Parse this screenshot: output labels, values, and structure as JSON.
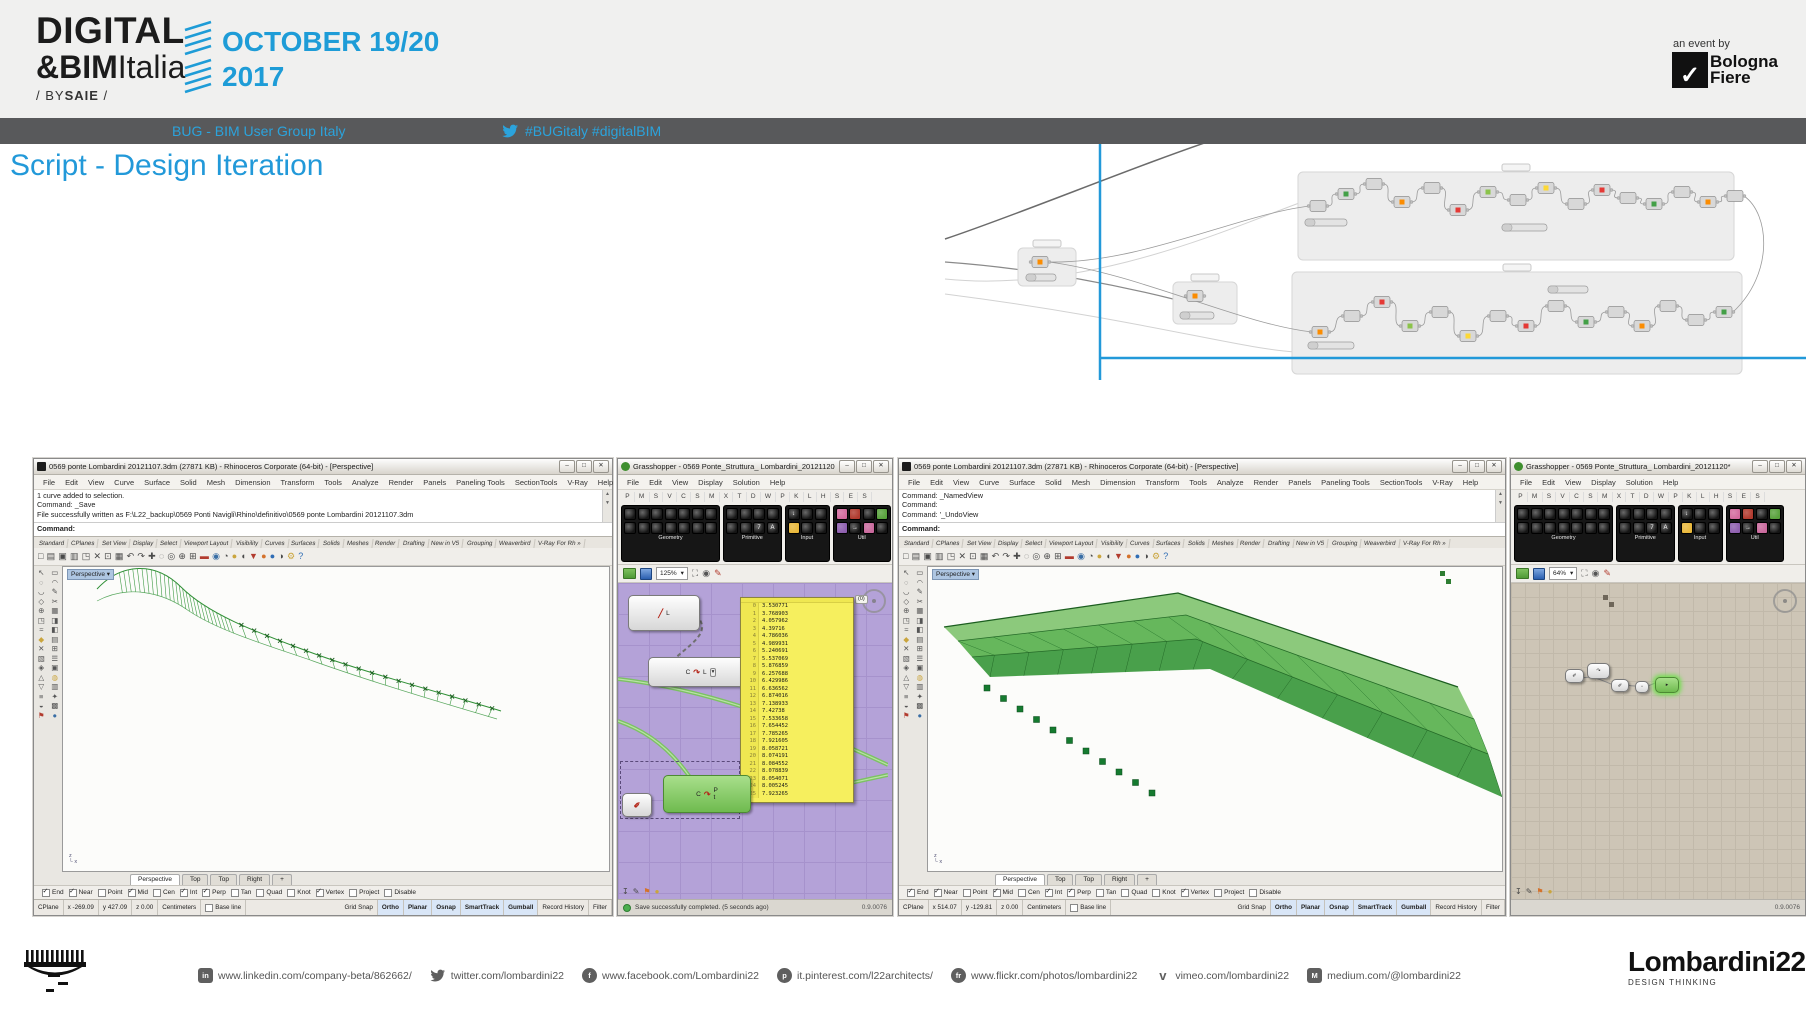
{
  "colors": {
    "accent_blue": "#2299d9",
    "banner_bg": "#58595b",
    "logo_blue": "#1e9cd7",
    "gh1_canvas": "#b4a2d8",
    "gh2_canvas": "#cdc5b6",
    "panel_yellow": "#f6ef5e",
    "model_green": "#2f8f35"
  },
  "header": {
    "logo_line1": "DIGITAL",
    "logo_amp": "&",
    "logo_bim": "BIM",
    "logo_italia": "Italia",
    "logo_sub_pre": "/ BY",
    "logo_sub_bold": "SAIE",
    "logo_sub_post": " /",
    "date_line1": "OCTOBER 19/20",
    "date_line2": "2017",
    "event_by": "an event by",
    "bf_mark": "✓",
    "bf_line1": "Bologna",
    "bf_line2": "Fiere"
  },
  "banner": {
    "group": "BUG - BIM User Group Italy",
    "hashtags": "#BUGitaly #digitalBIM"
  },
  "title": "Script - Design Iteration",
  "rhino1": {
    "window_title": "0569 ponte Lombardini 20121107.3dm (27871 KB) - Rhinoceros Corporate (64-bit) - [Perspective]",
    "btn_min": "–",
    "btn_max": "□",
    "btn_close": "✕",
    "menu": [
      "File",
      "Edit",
      "View",
      "Curve",
      "Surface",
      "Solid",
      "Mesh",
      "Dimension",
      "Transform",
      "Tools",
      "Analyze",
      "Render",
      "Panels",
      "Paneling Tools",
      "SectionTools",
      "V-Ray",
      "Help"
    ],
    "history": [
      "1 curve added to selection.",
      "Command: _Save",
      "File successfully written as F:\\L22_backup\\0569 Ponti Navigli\\Rhino\\definitivo\\0569 ponte Lombardini 20121107.3dm"
    ],
    "prompt": "Command:",
    "toolbar_tabs": [
      "Standard",
      "CPlanes",
      "Set View",
      "Display",
      "Select",
      "Viewport Layout",
      "Visibility",
      "Curves",
      "Surfaces",
      "Solids",
      "Meshes",
      "Render",
      "Drafting",
      "New in V5",
      "Grouping",
      "Weaverbird",
      "V-Ray For Rh »"
    ],
    "icons": [
      {
        "g": "□"
      },
      {
        "g": "▤"
      },
      {
        "g": "▣"
      },
      {
        "g": "▥"
      },
      {
        "g": "◳"
      },
      {
        "g": "✕"
      },
      {
        "g": "⊡"
      },
      {
        "g": "▦"
      },
      {
        "g": "↶"
      },
      {
        "g": "↷"
      },
      {
        "g": "✚"
      },
      {
        "g": "◌"
      },
      {
        "g": "◎"
      },
      {
        "g": "⊕"
      },
      {
        "g": "⊞"
      },
      {
        "g": "▬",
        "c": "#b23b2e"
      },
      {
        "g": "◉",
        "c": "#3a6ea5"
      },
      {
        "g": "◔"
      },
      {
        "g": "●",
        "c": "#caa53d"
      },
      {
        "g": "◖"
      },
      {
        "g": "▼",
        "c": "#b23b2e"
      },
      {
        "g": "●",
        "c": "#d4722c"
      },
      {
        "g": "●",
        "c": "#2f6db5"
      },
      {
        "g": "◑"
      },
      {
        "g": "⚙",
        "c": "#caa53d"
      },
      {
        "g": "?",
        "c": "#2f6db5"
      }
    ],
    "side_icons": [
      {
        "g": "↖"
      },
      {
        "g": "▭"
      },
      {
        "g": "◌"
      },
      {
        "g": "◠"
      },
      {
        "g": "◡"
      },
      {
        "g": "✎"
      },
      {
        "g": "◇"
      },
      {
        "g": "✂"
      },
      {
        "g": "⊕"
      },
      {
        "g": "▦"
      },
      {
        "g": "◳"
      },
      {
        "g": "◨"
      },
      {
        "g": "≈"
      },
      {
        "g": "◧"
      },
      {
        "g": "◆",
        "c": "#caa53d"
      },
      {
        "g": "▤"
      },
      {
        "g": "✕"
      },
      {
        "g": "⊞"
      },
      {
        "g": "▧"
      },
      {
        "g": "☰"
      },
      {
        "g": "◈"
      },
      {
        "g": "▣"
      },
      {
        "g": "△"
      },
      {
        "g": "◍",
        "c": "#caa53d"
      },
      {
        "g": "▽"
      },
      {
        "g": "▥"
      },
      {
        "g": "≡"
      },
      {
        "g": "✦"
      },
      {
        "g": "◒"
      },
      {
        "g": "▩"
      },
      {
        "g": "⚑",
        "c": "#b23b2e"
      },
      {
        "g": "●",
        "c": "#3a6ea5"
      }
    ],
    "viewport": "Perspective",
    "vtabs": [
      {
        "t": "Perspective",
        "a": 1
      },
      {
        "t": "Top"
      },
      {
        "t": "Top"
      },
      {
        "t": "Right"
      },
      {
        "t": "+"
      }
    ],
    "osnap": [
      {
        "l": "End",
        "c": 1
      },
      {
        "l": "Near",
        "c": 1
      },
      {
        "l": "Point",
        "c": 0
      },
      {
        "l": "Mid",
        "c": 1
      },
      {
        "l": "Cen",
        "c": 0
      },
      {
        "l": "Int",
        "c": 1
      },
      {
        "l": "Perp",
        "c": 1
      },
      {
        "l": "Tan",
        "c": 0
      },
      {
        "l": "Quad",
        "c": 0
      },
      {
        "l": "Knot",
        "c": 0
      },
      {
        "l": "Vertex",
        "c": 1
      },
      {
        "l": "Project",
        "c": 0
      },
      {
        "l": "Disable",
        "c": 0
      }
    ],
    "status_cells": [
      "CPlane",
      "x -269.09",
      "y 427.09",
      "z 0.00",
      "Centimeters"
    ],
    "layer": "Base line",
    "toggles": [
      {
        "t": "Grid Snap"
      },
      {
        "t": "Ortho",
        "hl": 1
      },
      {
        "t": "Planar",
        "hl": 1
      },
      {
        "t": "Osnap",
        "hl": 1
      },
      {
        "t": "SmartTrack",
        "hl": 1
      },
      {
        "t": "Gumball",
        "hl": 1
      },
      {
        "t": "Record History"
      },
      {
        "t": "Filter"
      }
    ]
  },
  "rhino2": {
    "window_title": "0569 ponte Lombardini 20121107.3dm (27871 KB) - Rhinoceros Corporate (64-bit) - [Perspective]",
    "btn_min": "–",
    "btn_max": "□",
    "btn_close": "✕",
    "history": [
      "Command: _NamedView",
      "Command:",
      "Command: '_UndoView"
    ],
    "prompt": "Command:",
    "viewport": "Perspective",
    "status_cells": [
      "CPlane",
      "x 514.07",
      "y -129.81",
      "z 0.00",
      "Centimeters"
    ],
    "layer": "Base line"
  },
  "gh1": {
    "window_title": "Grasshopper - 0569 Ponte_Struttura_ Lombardini_20121120",
    "btn_min": "–",
    "btn_max": "□",
    "btn_close": "✕",
    "menu": [
      "File",
      "Edit",
      "View",
      "Display",
      "Solution",
      "Help"
    ],
    "tab_letters": [
      "P",
      "M",
      "S",
      "V",
      "C",
      "S",
      "M",
      "X",
      "T",
      "D",
      "W",
      "P",
      "K",
      "L",
      "H",
      "S",
      "E",
      "S"
    ],
    "palette": [
      {
        "label": "Geometry",
        "cols": 7,
        "colors": {},
        "marks": {}
      },
      {
        "label": "Primitive",
        "cols": 4,
        "colors": {},
        "marks": {
          "6": "7",
          "7": "A"
        }
      },
      {
        "label": "Input",
        "cols": 3,
        "colors": {
          "3": "#e9b83b"
        },
        "marks": {
          "0": "↓"
        }
      },
      {
        "label": "Util",
        "cols": 4,
        "colors": {
          "0": "#d46a9e",
          "1": "#b03a2e",
          "3": "#58a13c",
          "4": "#8e5fae",
          "6": "#c9699c"
        },
        "marks": {
          "5": "→"
        }
      }
    ],
    "zoom": "125%",
    "comp1_out": "L",
    "comp2_in": "C",
    "comp2_glyph": "↷",
    "comp2_out": "L",
    "comp2_btn": "▾",
    "comp3_in": "C",
    "comp3_out1": "P",
    "comp3_out2": "t",
    "panel_tag": "(0)",
    "panel_values": [
      "3.530771",
      "3.768903",
      "4.057962",
      "4.39716",
      "4.786036",
      "4.989931",
      "5.240691",
      "5.537069",
      "5.876859",
      "6.257688",
      "6.429986",
      "6.636562",
      "6.874016",
      "7.138933",
      "7.42738",
      "7.533658",
      "7.654452",
      "7.785265",
      "7.921605",
      "8.058721",
      "8.074191",
      "8.084552",
      "8.078839",
      "8.054071",
      "8.005245",
      "7.923265"
    ],
    "status_message": "Save successfully completed. (5 seconds ago)",
    "version": "0.9.0076"
  },
  "gh2": {
    "window_title": "Grasshopper - 0569 Ponte_Struttura_ Lombardini_20121120*",
    "btn_min": "–",
    "btn_max": "□",
    "btn_close": "✕",
    "zoom": "64%",
    "version": "0.9.0076"
  },
  "footer": {
    "links": [
      {
        "glyph": "in",
        "kind": "sq",
        "url": "www.linkedin.com/company-beta/862662/"
      },
      {
        "glyph": "t",
        "kind": "round",
        "url": "twitter.com/lombardini22"
      },
      {
        "glyph": "f",
        "kind": "round",
        "url": "www.facebook.com/Lombardini22"
      },
      {
        "glyph": "p",
        "kind": "round",
        "url": "it.pinterest.com/l22architects/"
      },
      {
        "glyph": "fr",
        "kind": "round",
        "url": "www.flickr.com/photos/lombardini22"
      },
      {
        "glyph": "v",
        "kind": "plain",
        "url": "vimeo.com/lombardini22"
      },
      {
        "glyph": "M",
        "kind": "sq",
        "url": "medium.com/@lombardini22"
      }
    ],
    "brand": "Lombardini22",
    "brand_sub": "DESIGN THINKING"
  }
}
